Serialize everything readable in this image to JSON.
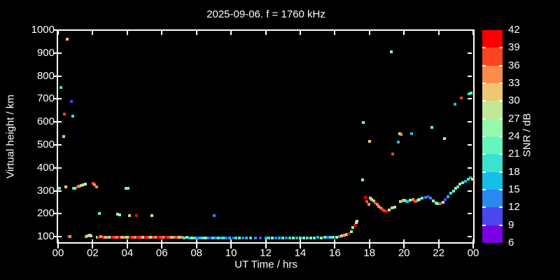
{
  "title": "2025-09-06. f = 1760 kHz",
  "colors": {
    "background": "#000000",
    "frame": "#FFFFFF",
    "text": "#FFFFFF"
  },
  "axes": {
    "x": {
      "label": "UT Time / hrs",
      "tick_hours": [
        0,
        2,
        4,
        6,
        8,
        10,
        12,
        14,
        16,
        18,
        20,
        22,
        24
      ],
      "tick_labels": [
        "00",
        "02",
        "04",
        "06",
        "08",
        "10",
        "12",
        "14",
        "16",
        "18",
        "20",
        "22",
        "00"
      ],
      "range_hours": [
        0,
        24
      ]
    },
    "y": {
      "label": "Virtual height / km",
      "tick_values": [
        100,
        200,
        300,
        400,
        500,
        600,
        700,
        800,
        900,
        1000
      ],
      "range_km": [
        73,
        1000
      ]
    }
  },
  "colorbar": {
    "label": "SNR / dB",
    "tick_labels": [
      "42",
      "39",
      "36",
      "33",
      "30",
      "27",
      "24",
      "21",
      "18",
      "15",
      "12",
      "9",
      "6"
    ],
    "bands_top_down": [
      {
        "range": [
          39,
          42
        ],
        "color": "#FA0000"
      },
      {
        "range": [
          36,
          39
        ],
        "color": "#FA4522"
      },
      {
        "range": [
          33,
          36
        ],
        "color": "#FB8C4A"
      },
      {
        "range": [
          30,
          33
        ],
        "color": "#EFC675"
      },
      {
        "range": [
          27,
          30
        ],
        "color": "#C2E896"
      },
      {
        "range": [
          24,
          27
        ],
        "color": "#96F8AC"
      },
      {
        "range": [
          21,
          24
        ],
        "color": "#63F7BE"
      },
      {
        "range": [
          18,
          21
        ],
        "color": "#3BE3CE"
      },
      {
        "range": [
          15,
          18
        ],
        "color": "#14BFE8"
      },
      {
        "range": [
          12,
          15
        ],
        "color": "#2989F0"
      },
      {
        "range": [
          9,
          12
        ],
        "color": "#4A47EE"
      },
      {
        "range": [
          6,
          9
        ],
        "color": "#7A00E6"
      }
    ]
  },
  "chart_data": {
    "type": "scatter",
    "title": "2025-09-06. f = 1760 kHz",
    "xlabel": "UT Time / hrs",
    "ylabel": "Virtual height / km",
    "color_label": "SNR / dB",
    "xlim_hours": [
      0,
      24
    ],
    "ylim_km": [
      73,
      1000
    ],
    "snr_scale_db": [
      6,
      42
    ],
    "grid": false,
    "legend_position": "right-colorbar",
    "point_format": "[ut_hours, virtual_height_km, snr_db]",
    "points": [
      [
        0.16,
        750,
        20
      ],
      [
        0.32,
        537,
        31
      ],
      [
        0.36,
        635,
        37
      ],
      [
        0.53,
        960,
        31
      ],
      [
        0.77,
        690,
        10
      ],
      [
        0.85,
        625,
        20
      ],
      [
        0.08,
        312,
        22
      ],
      [
        0.45,
        318,
        31
      ],
      [
        0.89,
        310,
        20
      ],
      [
        0.99,
        311,
        21
      ],
      [
        1.13,
        317,
        38
      ],
      [
        1.23,
        319,
        34
      ],
      [
        1.33,
        322,
        31
      ],
      [
        1.44,
        327,
        26
      ],
      [
        1.58,
        330,
        28
      ],
      [
        2.02,
        333,
        38
      ],
      [
        2.12,
        327,
        34
      ],
      [
        2.23,
        318,
        34
      ],
      [
        3.93,
        311,
        25
      ],
      [
        4.03,
        311,
        23
      ],
      [
        2.4,
        200,
        21
      ],
      [
        3.45,
        197,
        25
      ],
      [
        3.57,
        196,
        25
      ],
      [
        4.12,
        192,
        31
      ],
      [
        4.52,
        192,
        40
      ],
      [
        5.42,
        192,
        28
      ],
      [
        9.02,
        192,
        13
      ],
      [
        0.6,
        99,
        40
      ],
      [
        0.7,
        99,
        35
      ],
      [
        1.62,
        100,
        34
      ],
      [
        1.72,
        102,
        31
      ],
      [
        1.82,
        106,
        28
      ],
      [
        1.92,
        105,
        27
      ],
      [
        2.25,
        98,
        25
      ],
      [
        2.35,
        98,
        40
      ],
      [
        2.48,
        99,
        35
      ],
      [
        2.62,
        98,
        38
      ],
      [
        2.75,
        97,
        31
      ],
      [
        2.88,
        98,
        34
      ],
      [
        3.0,
        97,
        24
      ],
      [
        3.12,
        98,
        40
      ],
      [
        3.25,
        98,
        38
      ],
      [
        3.4,
        97,
        35
      ],
      [
        3.55,
        98,
        40
      ],
      [
        3.7,
        98,
        31
      ],
      [
        3.85,
        97,
        34
      ],
      [
        4.0,
        98,
        26
      ],
      [
        4.15,
        97,
        40
      ],
      [
        4.3,
        98,
        38
      ],
      [
        4.45,
        97,
        35
      ],
      [
        4.6,
        98,
        40
      ],
      [
        4.75,
        97,
        38
      ],
      [
        4.9,
        98,
        31
      ],
      [
        5.05,
        97,
        40
      ],
      [
        5.2,
        98,
        38
      ],
      [
        5.35,
        97,
        24
      ],
      [
        5.5,
        97,
        38
      ],
      [
        5.65,
        98,
        35
      ],
      [
        5.8,
        97,
        40
      ],
      [
        5.95,
        97,
        38
      ],
      [
        6.1,
        96,
        34
      ],
      [
        6.25,
        97,
        40
      ],
      [
        6.4,
        96,
        38
      ],
      [
        6.55,
        97,
        31
      ],
      [
        6.7,
        96,
        35
      ],
      [
        6.85,
        97,
        38
      ],
      [
        7.0,
        96,
        31
      ],
      [
        7.15,
        96,
        34
      ],
      [
        7.3,
        95,
        20
      ],
      [
        7.45,
        96,
        22
      ],
      [
        7.6,
        95,
        17
      ],
      [
        7.75,
        95,
        25
      ],
      [
        7.9,
        94,
        20
      ],
      [
        8.05,
        95,
        13
      ],
      [
        8.2,
        94,
        17
      ],
      [
        8.35,
        95,
        20
      ],
      [
        8.5,
        94,
        25
      ],
      [
        8.65,
        94,
        17
      ],
      [
        8.8,
        95,
        10
      ],
      [
        8.95,
        94,
        20
      ],
      [
        9.1,
        94,
        13
      ],
      [
        9.25,
        94,
        22
      ],
      [
        9.4,
        93,
        17
      ],
      [
        9.55,
        94,
        20
      ],
      [
        9.7,
        93,
        13
      ],
      [
        9.9,
        94,
        17
      ],
      [
        10.1,
        93,
        10
      ],
      [
        10.3,
        93,
        20
      ],
      [
        10.5,
        94,
        22
      ],
      [
        10.7,
        93,
        13
      ],
      [
        10.9,
        93,
        17
      ],
      [
        11.15,
        94,
        20
      ],
      [
        11.4,
        93,
        13
      ],
      [
        11.7,
        93,
        10
      ],
      [
        12.0,
        93,
        17
      ],
      [
        12.2,
        94,
        20
      ],
      [
        12.4,
        93,
        25
      ],
      [
        12.6,
        94,
        13
      ],
      [
        12.8,
        93,
        17
      ],
      [
        13.0,
        94,
        22
      ],
      [
        13.2,
        93,
        13
      ],
      [
        13.4,
        94,
        20
      ],
      [
        13.6,
        94,
        25
      ],
      [
        13.8,
        94,
        17
      ],
      [
        14.0,
        95,
        22
      ],
      [
        14.2,
        94,
        26
      ],
      [
        14.4,
        95,
        20
      ],
      [
        14.6,
        95,
        25
      ],
      [
        14.8,
        95,
        22
      ],
      [
        15.0,
        96,
        17
      ],
      [
        15.2,
        95,
        26
      ],
      [
        15.4,
        96,
        22
      ],
      [
        15.6,
        96,
        13
      ],
      [
        15.75,
        97,
        20
      ],
      [
        15.9,
        97,
        22
      ],
      [
        16.1,
        98,
        26
      ],
      [
        16.25,
        100,
        13
      ],
      [
        16.4,
        103,
        31
      ],
      [
        16.55,
        106,
        34
      ],
      [
        16.68,
        110,
        26
      ],
      [
        16.8,
        113,
        40
      ],
      [
        16.95,
        122,
        26
      ],
      [
        17.05,
        140,
        26
      ],
      [
        17.15,
        150,
        40
      ],
      [
        17.25,
        160,
        26
      ],
      [
        17.3,
        168,
        28
      ],
      [
        17.6,
        348,
        25
      ],
      [
        17.75,
        272,
        40
      ],
      [
        17.85,
        252,
        36
      ],
      [
        17.95,
        242,
        35
      ],
      [
        18.05,
        268,
        31
      ],
      [
        18.15,
        262,
        28
      ],
      [
        18.25,
        255,
        31
      ],
      [
        18.35,
        248,
        38
      ],
      [
        18.45,
        240,
        34
      ],
      [
        18.55,
        232,
        35
      ],
      [
        18.65,
        225,
        34
      ],
      [
        18.75,
        218,
        36
      ],
      [
        18.85,
        212,
        38
      ],
      [
        19.0,
        210,
        40
      ],
      [
        19.15,
        216,
        31
      ],
      [
        19.3,
        224,
        26
      ],
      [
        19.45,
        230,
        28
      ],
      [
        19.8,
        252,
        26
      ],
      [
        19.9,
        255,
        34
      ],
      [
        20.0,
        258,
        31
      ],
      [
        20.1,
        255,
        22
      ],
      [
        20.2,
        252,
        17
      ],
      [
        20.35,
        258,
        26
      ],
      [
        20.5,
        262,
        34
      ],
      [
        20.6,
        256,
        38
      ],
      [
        20.7,
        252,
        36
      ],
      [
        20.8,
        258,
        22
      ],
      [
        20.9,
        262,
        25
      ],
      [
        21.05,
        268,
        22
      ],
      [
        21.25,
        272,
        13
      ],
      [
        21.4,
        275,
        10
      ],
      [
        21.55,
        268,
        14
      ],
      [
        21.7,
        256,
        25
      ],
      [
        21.85,
        248,
        26
      ],
      [
        21.95,
        245,
        22
      ],
      [
        22.1,
        245,
        38
      ],
      [
        22.25,
        250,
        25
      ],
      [
        22.4,
        262,
        11
      ],
      [
        22.55,
        275,
        17
      ],
      [
        22.7,
        288,
        20
      ],
      [
        22.85,
        298,
        22
      ],
      [
        23.0,
        310,
        25
      ],
      [
        23.1,
        318,
        20
      ],
      [
        23.25,
        328,
        26
      ],
      [
        23.4,
        335,
        22
      ],
      [
        23.55,
        342,
        17
      ],
      [
        23.7,
        350,
        20
      ],
      [
        23.85,
        357,
        17
      ],
      [
        23.95,
        352,
        31
      ],
      [
        17.65,
        597,
        22
      ],
      [
        18.0,
        515,
        31
      ],
      [
        19.25,
        905,
        26
      ],
      [
        19.35,
        460,
        38
      ],
      [
        19.65,
        512,
        16
      ],
      [
        19.75,
        550,
        28
      ],
      [
        19.85,
        547,
        35
      ],
      [
        20.45,
        548,
        16
      ],
      [
        21.6,
        576,
        21
      ],
      [
        22.35,
        527,
        28
      ],
      [
        22.95,
        676,
        15
      ],
      [
        23.3,
        703,
        36
      ],
      [
        23.75,
        724,
        20
      ],
      [
        23.88,
        727,
        22
      ]
    ]
  }
}
